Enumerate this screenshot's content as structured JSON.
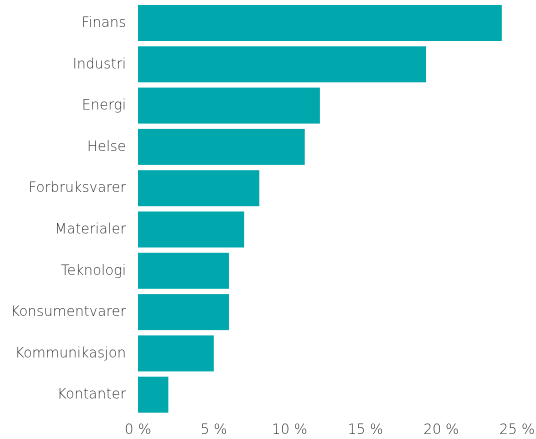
{
  "chart_data": {
    "type": "hbar",
    "categories": [
      "Finans",
      "Industri",
      "Energi",
      "Helse",
      "Forbruksvarer",
      "Materialer",
      "Teknologi",
      "Konsumentvarer",
      "Kommunikasjon",
      "Kontanter"
    ],
    "values": [
      24,
      19,
      12,
      11,
      8,
      7,
      6,
      6,
      5,
      2
    ],
    "color": "#00a8ad",
    "xlim": [
      0,
      25
    ],
    "xticks": [
      {
        "value": 0,
        "label": "0 %"
      },
      {
        "value": 5,
        "label": "5 %"
      },
      {
        "value": 10,
        "label": "10 %"
      },
      {
        "value": 15,
        "label": "15 %"
      },
      {
        "value": 20,
        "label": "20 %"
      },
      {
        "value": 25,
        "label": "25 %"
      }
    ],
    "grid": false
  }
}
